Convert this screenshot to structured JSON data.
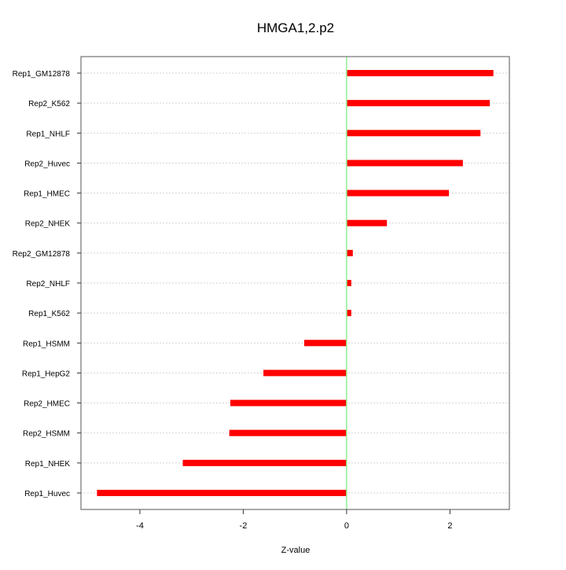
{
  "chart_data": {
    "type": "bar",
    "orientation": "horizontal",
    "title": "HMGA1,2.p2",
    "xlabel": "Z-value",
    "ylabel": "",
    "xlim": [
      -5.14,
      3.15
    ],
    "xticks": [
      -4,
      -2,
      0,
      2
    ],
    "xtick_labels": [
      "-4",
      "-2",
      "0",
      "2"
    ],
    "grid": true,
    "reference_line": {
      "x": 0,
      "color": "#90ee90"
    },
    "bar_color": "#ff0000",
    "categories": [
      "Rep1_GM12878",
      "Rep2_K562",
      "Rep1_NHLF",
      "Rep2_Huvec",
      "Rep1_HMEC",
      "Rep2_NHEK",
      "Rep2_GM12878",
      "Rep2_NHLF",
      "Rep1_K562",
      "Rep1_HSMM",
      "Rep1_HepG2",
      "Rep2_HMEC",
      "Rep2_HSMM",
      "Rep1_NHEK",
      "Rep1_Huvec"
    ],
    "values": [
      2.84,
      2.77,
      2.59,
      2.25,
      1.98,
      0.78,
      0.12,
      0.09,
      0.09,
      -0.82,
      -1.61,
      -2.25,
      -2.27,
      -3.17,
      -4.83
    ]
  }
}
